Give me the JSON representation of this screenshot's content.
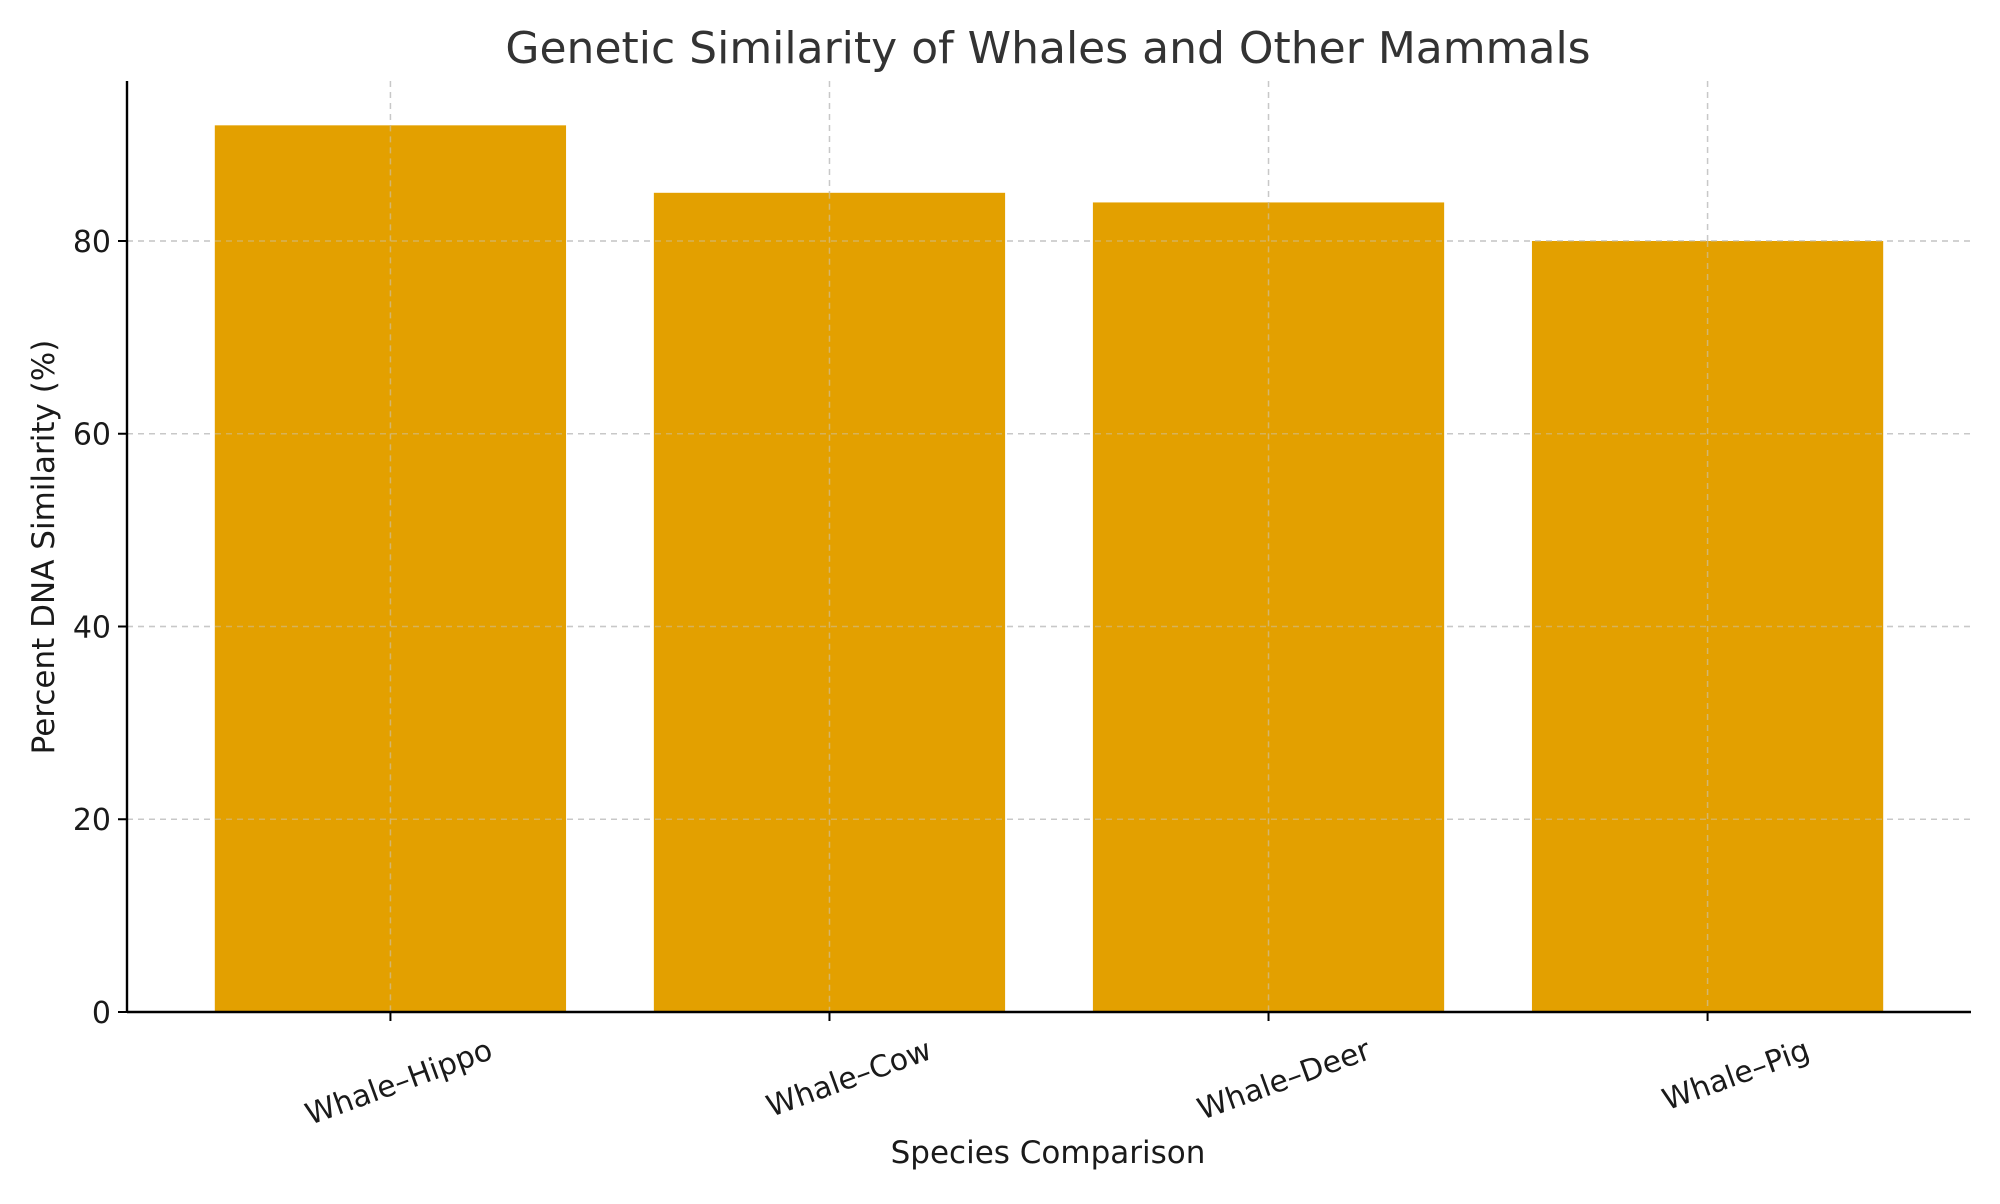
{
  "chart_data": {
    "type": "bar",
    "title": "Genetic Similarity of Whales and Other Mammals",
    "xlabel": "Species Comparison",
    "ylabel": "Percent DNA Similarity (%)",
    "categories": [
      "Whale–Hippo",
      "Whale–Cow",
      "Whale–Deer",
      "Whale–Pig"
    ],
    "values": [
      92,
      85,
      84,
      80
    ],
    "ylim": [
      0,
      96.6
    ],
    "yticks": [
      0,
      20,
      40,
      60,
      80
    ],
    "grid": true,
    "legend": "none",
    "bar_color": "#E3A000",
    "grid_color": "#c8c8c8"
  }
}
